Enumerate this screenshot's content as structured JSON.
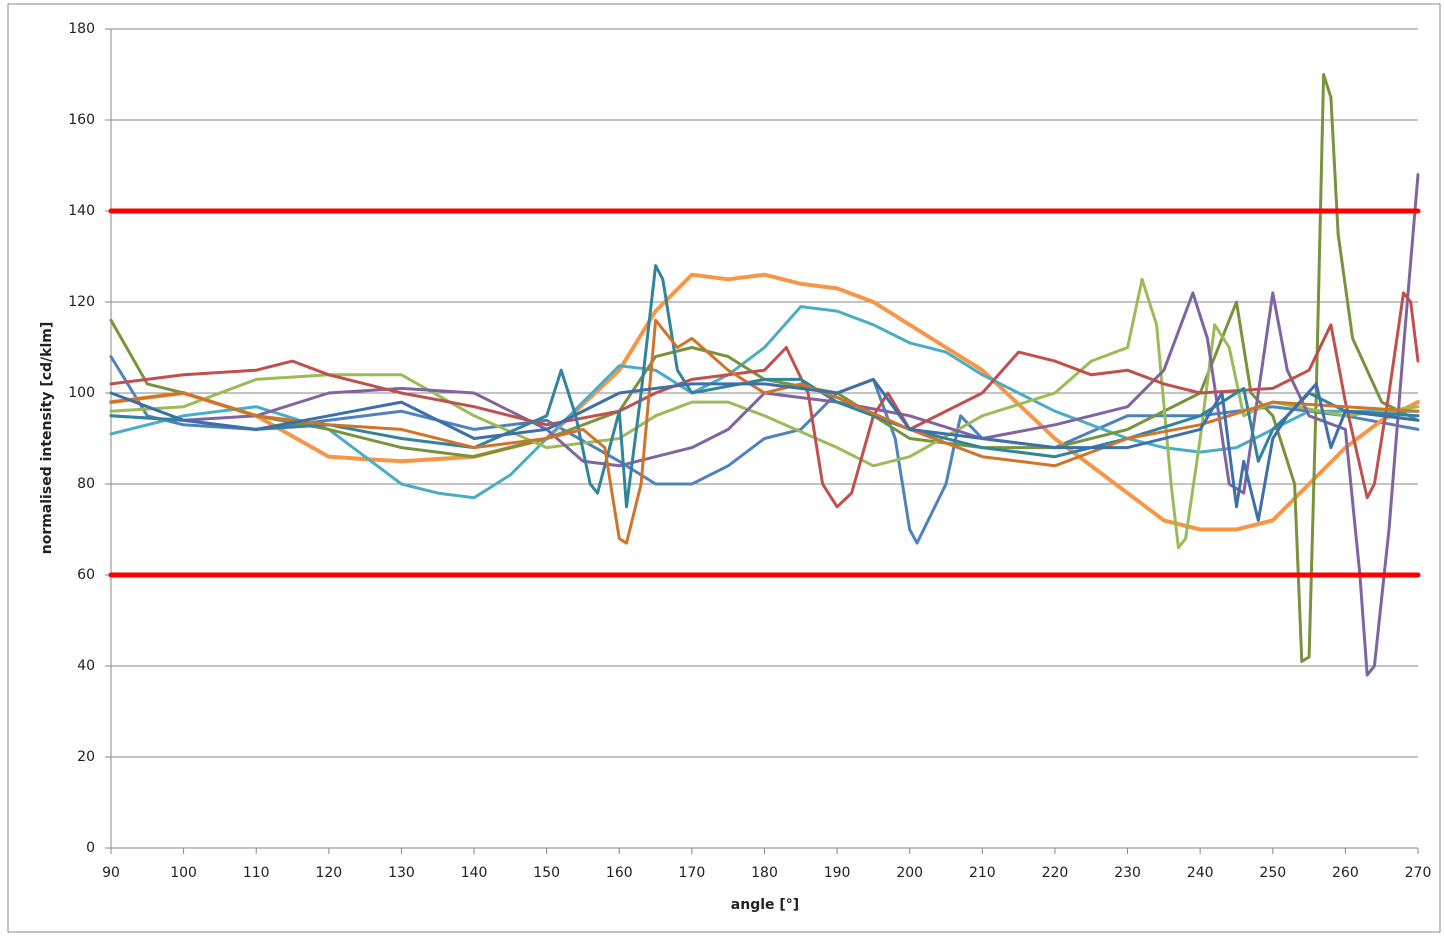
{
  "chart_data": {
    "type": "line",
    "x_label": "angle [°]",
    "y_label": "normalised intensity [cd/klm]",
    "xlim": [
      90,
      270
    ],
    "xticks": [
      90,
      100,
      110,
      120,
      130,
      140,
      150,
      160,
      170,
      180,
      190,
      200,
      210,
      220,
      230,
      240,
      250,
      260,
      270
    ],
    "ylim": [
      0,
      180
    ],
    "yticks": [
      0,
      20,
      40,
      60,
      80,
      100,
      120,
      140,
      160,
      180
    ],
    "grid": true,
    "series": [
      {
        "color": "#4f81bd",
        "width": 3,
        "x": [
          90,
          95,
          100,
          110,
          120,
          130,
          140,
          150,
          160,
          165,
          170,
          175,
          180,
          185,
          190,
          195,
          198,
          200,
          201,
          205,
          207,
          210,
          220,
          230,
          240,
          250,
          260,
          270
        ],
        "values": [
          108,
          95,
          93,
          92,
          94,
          96,
          92,
          94,
          85,
          80,
          80,
          84,
          90,
          92,
          100,
          103,
          90,
          70,
          67,
          80,
          95,
          90,
          88,
          95,
          95,
          97,
          95,
          92
        ]
      },
      {
        "color": "#f79646",
        "width": 4,
        "x": [
          90,
          100,
          110,
          120,
          130,
          140,
          150,
          160,
          165,
          170,
          175,
          180,
          185,
          190,
          195,
          200,
          210,
          220,
          230,
          235,
          240,
          245,
          250,
          255,
          260,
          265,
          270
        ],
        "values": [
          98,
          100,
          95,
          86,
          85,
          86,
          90,
          105,
          118,
          126,
          125,
          126,
          124,
          123,
          120,
          115,
          105,
          90,
          78,
          72,
          70,
          70,
          72,
          80,
          88,
          94,
          98
        ]
      },
      {
        "color": "#4bacc6",
        "width": 3,
        "x": [
          90,
          100,
          110,
          120,
          130,
          135,
          140,
          145,
          150,
          155,
          160,
          165,
          170,
          175,
          180,
          185,
          190,
          195,
          200,
          205,
          210,
          220,
          230,
          235,
          240,
          245,
          250,
          255,
          260,
          270
        ],
        "values": [
          91,
          95,
          97,
          92,
          80,
          78,
          77,
          82,
          90,
          98,
          106,
          105,
          100,
          104,
          110,
          119,
          118,
          115,
          111,
          109,
          104,
          96,
          90,
          88,
          87,
          88,
          92,
          96,
          96,
          96
        ]
      },
      {
        "color": "#77933c",
        "width": 3,
        "x": [
          90,
          95,
          100,
          110,
          120,
          130,
          140,
          150,
          160,
          165,
          170,
          175,
          180,
          190,
          200,
          210,
          220,
          230,
          240,
          245,
          247,
          250,
          253,
          254,
          255,
          256,
          257,
          258,
          259,
          261,
          265,
          270
        ],
        "values": [
          116,
          102,
          100,
          95,
          92,
          88,
          86,
          90,
          96,
          108,
          110,
          108,
          103,
          100,
          90,
          88,
          88,
          92,
          100,
          120,
          100,
          95,
          80,
          41,
          42,
          100,
          170,
          165,
          135,
          112,
          98,
          94
        ]
      },
      {
        "color": "#9bbb59",
        "width": 3,
        "x": [
          90,
          100,
          110,
          120,
          130,
          140,
          150,
          160,
          165,
          170,
          175,
          180,
          190,
          195,
          200,
          210,
          220,
          225,
          230,
          232,
          234,
          236,
          237,
          238,
          240,
          242,
          244,
          246,
          250,
          260,
          270
        ],
        "values": [
          96,
          97,
          103,
          104,
          104,
          95,
          88,
          90,
          95,
          98,
          98,
          95,
          88,
          84,
          86,
          95,
          100,
          107,
          110,
          125,
          115,
          80,
          66,
          68,
          90,
          115,
          110,
          95,
          98,
          95,
          97
        ]
      },
      {
        "color": "#8064a2",
        "width": 3,
        "x": [
          90,
          100,
          110,
          120,
          130,
          140,
          145,
          150,
          155,
          160,
          165,
          170,
          175,
          180,
          190,
          200,
          210,
          220,
          230,
          235,
          239,
          241,
          244,
          246,
          248,
          250,
          252,
          255,
          260,
          262,
          263,
          264,
          266,
          268,
          270
        ],
        "values": [
          95,
          94,
          95,
          100,
          101,
          100,
          96,
          92,
          85,
          84,
          86,
          88,
          92,
          100,
          98,
          95,
          90,
          93,
          97,
          105,
          122,
          112,
          80,
          78,
          100,
          122,
          105,
          95,
          92,
          60,
          38,
          40,
          70,
          110,
          148
        ]
      },
      {
        "color": "#c0504d",
        "width": 3,
        "x": [
          90,
          100,
          110,
          115,
          120,
          130,
          140,
          150,
          160,
          165,
          170,
          175,
          180,
          183,
          186,
          188,
          190,
          192,
          195,
          197,
          200,
          210,
          215,
          220,
          225,
          230,
          235,
          240,
          250,
          255,
          258,
          260,
          263,
          264,
          266,
          268,
          269,
          270
        ],
        "values": [
          102,
          104,
          105,
          107,
          104,
          100,
          97,
          93,
          96,
          100,
          103,
          104,
          105,
          110,
          100,
          80,
          75,
          78,
          95,
          100,
          92,
          100,
          109,
          107,
          104,
          105,
          102,
          100,
          101,
          105,
          115,
          98,
          77,
          80,
          100,
          122,
          120,
          107
        ]
      },
      {
        "color": "#31849b",
        "width": 3,
        "x": [
          90,
          100,
          110,
          120,
          130,
          140,
          150,
          152,
          154,
          156,
          157,
          160,
          161,
          163,
          165,
          166,
          168,
          170,
          180,
          185,
          190,
          200,
          210,
          220,
          230,
          240,
          246,
          248,
          250,
          252,
          255,
          260,
          270
        ],
        "values": [
          95,
          94,
          92,
          93,
          90,
          88,
          95,
          105,
          95,
          80,
          78,
          96,
          75,
          100,
          128,
          125,
          105,
          100,
          103,
          103,
          98,
          92,
          88,
          86,
          90,
          95,
          101,
          85,
          92,
          95,
          100,
          96,
          95
        ]
      },
      {
        "color": "#d0742c",
        "width": 3,
        "x": [
          90,
          100,
          110,
          120,
          130,
          140,
          150,
          155,
          158,
          160,
          161,
          163,
          165,
          168,
          170,
          175,
          180,
          185,
          190,
          200,
          210,
          220,
          230,
          240,
          250,
          260,
          270
        ],
        "values": [
          98,
          100,
          95,
          93,
          92,
          88,
          90,
          92,
          88,
          68,
          67,
          80,
          116,
          110,
          112,
          105,
          100,
          102,
          99,
          92,
          86,
          84,
          90,
          93,
          98,
          97,
          96
        ]
      },
      {
        "color": "#3d6fa8",
        "width": 3,
        "x": [
          90,
          100,
          110,
          120,
          130,
          140,
          150,
          160,
          170,
          180,
          190,
          195,
          200,
          210,
          220,
          230,
          240,
          243,
          245,
          246,
          248,
          250,
          252,
          256,
          258,
          260,
          270
        ],
        "values": [
          100,
          94,
          92,
          95,
          98,
          90,
          92,
          100,
          102,
          102,
          100,
          103,
          92,
          90,
          88,
          88,
          92,
          100,
          75,
          85,
          72,
          90,
          95,
          102,
          88,
          96,
          94
        ]
      },
      {
        "color": "#ff0000",
        "width": 5,
        "x": [
          90,
          270
        ],
        "values": [
          140,
          140
        ]
      },
      {
        "color": "#ff0000",
        "width": 5,
        "x": [
          90,
          270
        ],
        "values": [
          60,
          60
        ]
      }
    ]
  }
}
